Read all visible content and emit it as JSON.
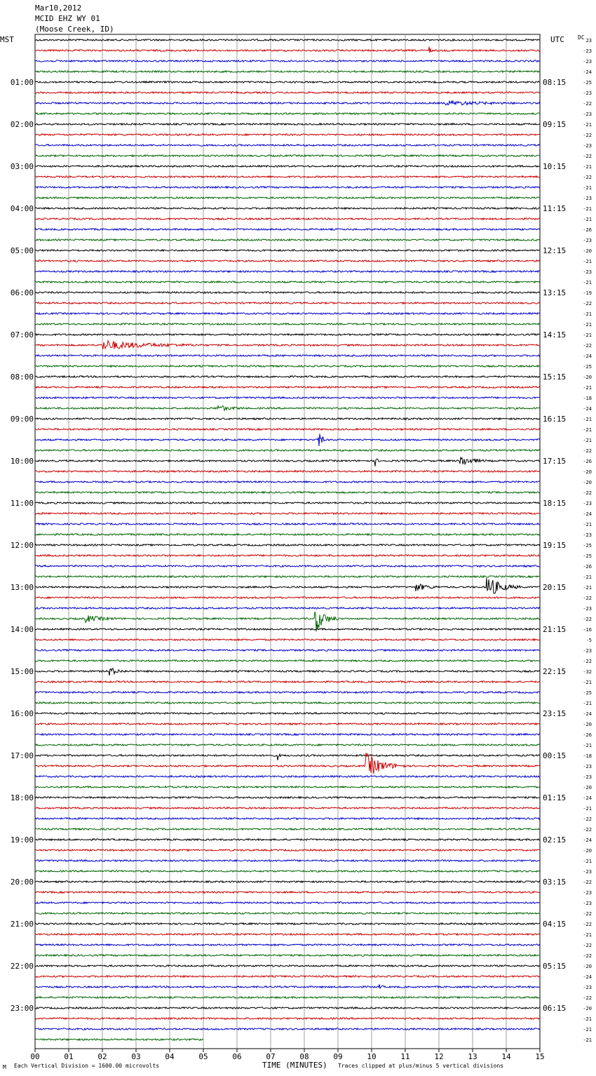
{
  "header": {
    "date": "Mar10,2012",
    "station": "MCID EHZ WY 01",
    "location": "(Moose Creek, ID)"
  },
  "labels": {
    "left_tz": "MST",
    "right_tz": "UTC",
    "dc": "DC",
    "xlabel": "TIME (MINUTES)",
    "scale_note": "Each Vertical Division = 1600.00 microvolts",
    "clip_note": "Traces clipped at plus/minus 5 vertical divisions",
    "corner_mark": "M"
  },
  "colors": {
    "cycle": [
      "#000000",
      "#cc0000",
      "#0000cc",
      "#006600"
    ],
    "grid": "#888888"
  },
  "chart_data": {
    "type": "line",
    "title": "MCID EHZ WY 01",
    "xlabel": "TIME (MINUTES)",
    "xlim": [
      0,
      15
    ],
    "x_ticks": [
      "00",
      "01",
      "02",
      "03",
      "04",
      "05",
      "06",
      "07",
      "08",
      "09",
      "10",
      "11",
      "12",
      "13",
      "14",
      "15"
    ],
    "rows_per_hour": 4,
    "total_rows": 96,
    "last_row_end_minute": 5,
    "left_hour_labels": [
      "01:00",
      "02:00",
      "03:00",
      "04:00",
      "05:00",
      "06:00",
      "07:00",
      "08:00",
      "09:00",
      "10:00",
      "11:00",
      "12:00",
      "13:00",
      "14:00",
      "15:00",
      "16:00",
      "17:00",
      "18:00",
      "19:00",
      "20:00",
      "21:00",
      "22:00",
      "23:00"
    ],
    "right_hour_labels": [
      "08:15",
      "09:15",
      "10:15",
      "11:15",
      "12:15",
      "13:15",
      "14:15",
      "15:15",
      "16:15",
      "17:15",
      "18:15",
      "19:15",
      "20:15",
      "21:15",
      "22:15",
      "23:15",
      "00:15",
      "01:15",
      "02:15",
      "03:15",
      "04:15",
      "05:15",
      "06:15"
    ],
    "dc_offsets": [
      "23",
      "-23",
      "-23",
      "-24",
      "-25",
      "-23",
      "-22",
      "-23",
      "-21",
      "-22",
      "-23",
      "-22",
      "-21",
      "-22",
      "-21",
      "-23",
      "-21",
      "-21",
      "-26",
      "-23",
      "-20",
      "-21",
      "-23",
      "-21",
      "-19",
      "-22",
      "-21",
      "-21",
      "-21",
      "-22",
      "-24",
      "-25",
      "-20",
      "-21",
      "-18",
      "-24",
      "-21",
      "-21",
      "-21",
      "-22",
      "-26",
      "-20",
      "-20",
      "-22",
      "-23",
      "-24",
      "-21",
      "-23",
      "-25",
      "-25",
      "-26",
      "-21",
      "-21",
      "-22",
      "-23",
      "-22",
      "-16",
      "-5",
      "-23",
      "-22",
      "-32",
      "-21",
      "-25",
      "-21",
      "-24",
      "-20",
      "-26",
      "-21",
      "-18",
      "-23",
      "-23",
      "-20",
      "-24",
      "-21",
      "-22",
      "-22",
      "-24",
      "-20",
      "-21",
      "-23",
      "-22",
      "-23",
      "-23",
      "-22",
      "-22",
      "-21",
      "-22",
      "-22",
      "-20",
      "-24",
      "-23",
      "-22",
      "-20",
      "-21",
      "-21",
      "-21"
    ],
    "events": [
      {
        "row": 1,
        "minute": 11.7,
        "duration": 0.1,
        "amp": 8
      },
      {
        "row": 6,
        "minute": 12.2,
        "duration": 2.5,
        "amp": 3
      },
      {
        "row": 29,
        "minute": 2.0,
        "duration": 3.0,
        "amp": 7
      },
      {
        "row": 35,
        "minute": 5.4,
        "duration": 0.8,
        "amp": 5
      },
      {
        "row": 38,
        "minute": 8.4,
        "duration": 0.2,
        "amp": 25
      },
      {
        "row": 40,
        "minute": 10.1,
        "duration": 0.1,
        "amp": 14
      },
      {
        "row": 40,
        "minute": 12.6,
        "duration": 0.8,
        "amp": 9
      },
      {
        "row": 52,
        "minute": 11.3,
        "duration": 0.8,
        "amp": 6
      },
      {
        "row": 52,
        "minute": 13.4,
        "duration": 1.0,
        "amp": 18
      },
      {
        "row": 55,
        "minute": 8.3,
        "duration": 0.7,
        "amp": 22
      },
      {
        "row": 55,
        "minute": 1.5,
        "duration": 1.0,
        "amp": 5
      },
      {
        "row": 60,
        "minute": 2.2,
        "duration": 0.6,
        "amp": 6
      },
      {
        "row": 68,
        "minute": 7.2,
        "duration": 0.1,
        "amp": 8
      },
      {
        "row": 69,
        "minute": 9.8,
        "duration": 1.2,
        "amp": 20
      },
      {
        "row": 90,
        "minute": 10.2,
        "duration": 0.2,
        "amp": 4
      }
    ]
  }
}
